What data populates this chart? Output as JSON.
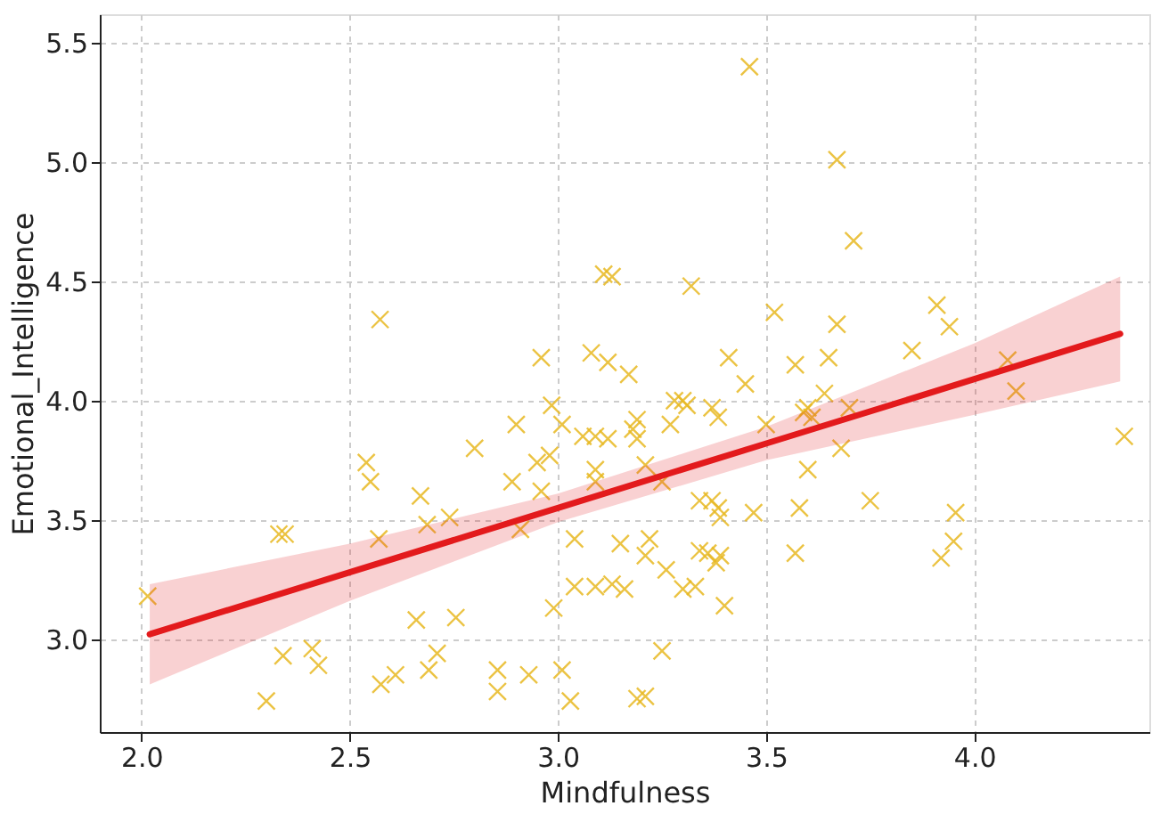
{
  "chart_data": {
    "type": "scatter",
    "xlabel": "Mindfulness",
    "ylabel": "Emotional_Intelligence",
    "xlim": [
      1.9,
      4.42
    ],
    "ylim": [
      2.61,
      5.62
    ],
    "xticks": [
      {
        "value": 2,
        "label": "2.0"
      },
      {
        "value": 2.5,
        "label": "2.5"
      },
      {
        "value": 3,
        "label": "3.0"
      },
      {
        "value": 3.5,
        "label": "3.5"
      },
      {
        "value": 4,
        "label": "4.0"
      }
    ],
    "yticks": [
      {
        "value": 3,
        "label": "3.0"
      },
      {
        "value": 3.5,
        "label": "3.5"
      },
      {
        "value": 4,
        "label": "4.0"
      },
      {
        "value": 4.5,
        "label": "4.5"
      },
      {
        "value": 5,
        "label": "5.0"
      },
      {
        "value": 5.5,
        "label": "5.5"
      }
    ],
    "grid": true,
    "marker": "cross",
    "series": [
      {
        "color": "#e8b923",
        "x": [
          2.573,
          2.96,
          2.985,
          3.08,
          3.12,
          3.17,
          3.11,
          3.13,
          3.46,
          3.67,
          3.71,
          3.32,
          3.52,
          3.67,
          3.91,
          3.94,
          3.41,
          3.45,
          3.57,
          3.65,
          3.85,
          4.08,
          4.1,
          3.64,
          3.28,
          3.3,
          3.37,
          3.6,
          2.015,
          2.33,
          2.345,
          2.3,
          2.34,
          2.41,
          2.425,
          2.54,
          2.55,
          2.57,
          2.575,
          2.61,
          2.67,
          2.66,
          2.69,
          2.71,
          2.686,
          2.74,
          2.755,
          2.8,
          2.855,
          2.855,
          2.89,
          2.9,
          2.91,
          2.93,
          2.95,
          2.96,
          2.98,
          3.01,
          3.01,
          3.03,
          2.99,
          3.04,
          3.04,
          3.09,
          3.13,
          3.16,
          3.06,
          3.09,
          3.12,
          3.09,
          3.09,
          3.15,
          3.18,
          3.19,
          4.36,
          3.31,
          3.385,
          3.19,
          3.19,
          3.27,
          3.5,
          3.59,
          3.61,
          3.7,
          3.68,
          3.6,
          3.21,
          3.25,
          3.34,
          3.37,
          3.385,
          3.39,
          3.47,
          3.58,
          3.75,
          3.955,
          3.95,
          3.92,
          3.57,
          3.22,
          3.21,
          3.26,
          3.34,
          3.36,
          3.38,
          3.39,
          3.3,
          3.33,
          3.4,
          3.25,
          3.21
        ],
        "values": [
          4.34,
          4.18,
          3.98,
          4.2,
          4.16,
          4.11,
          4.53,
          4.52,
          5.4,
          5.01,
          4.67,
          4.48,
          4.37,
          4.32,
          4.4,
          4.31,
          4.18,
          4.07,
          4.15,
          4.18,
          4.21,
          4.17,
          4.04,
          4.03,
          4.0,
          4.0,
          3.97,
          3.97,
          3.18,
          3.44,
          3.44,
          2.74,
          2.93,
          2.96,
          2.89,
          3.74,
          3.66,
          3.42,
          2.81,
          2.85,
          3.6,
          3.08,
          2.87,
          2.94,
          3.48,
          3.51,
          3.09,
          3.8,
          2.87,
          2.78,
          3.66,
          3.9,
          3.46,
          2.85,
          3.74,
          3.62,
          3.77,
          3.9,
          2.87,
          2.74,
          3.13,
          3.42,
          3.22,
          3.22,
          3.23,
          3.21,
          3.85,
          3.85,
          3.84,
          3.71,
          3.66,
          3.4,
          3.88,
          2.75,
          3.85,
          3.98,
          3.93,
          3.92,
          3.84,
          3.9,
          3.9,
          3.95,
          3.93,
          3.97,
          3.8,
          3.71,
          3.73,
          3.66,
          3.58,
          3.58,
          3.55,
          3.51,
          3.53,
          3.55,
          3.58,
          3.53,
          3.41,
          3.34,
          3.36,
          3.42,
          3.35,
          3.29,
          3.37,
          3.36,
          3.32,
          3.35,
          3.21,
          3.22,
          3.14,
          2.95,
          2.76
        ]
      },
      {
        "type": "line",
        "marker": "none",
        "line_style": "solid",
        "color": "#e31a1c",
        "x": [
          2.02,
          2.5,
          3.0,
          3.5,
          4.0,
          4.35
        ],
        "values": [
          3.02,
          3.28,
          3.55,
          3.82,
          4.09,
          4.28
        ],
        "lower": [
          2.81,
          3.16,
          3.49,
          3.75,
          3.94,
          4.08
        ],
        "upper": [
          3.23,
          3.4,
          3.61,
          3.89,
          4.24,
          4.52
        ]
      }
    ]
  }
}
